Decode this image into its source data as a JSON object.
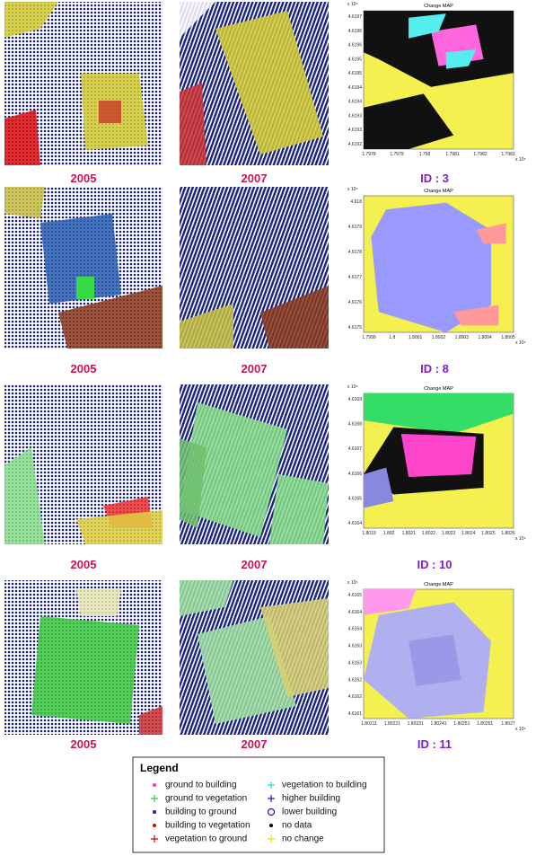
{
  "rows": [
    {
      "captions": [
        "2005",
        "2007",
        "ID : 3"
      ],
      "map": {
        "title": "Change MAP",
        "yticks": [
          "4.6197",
          "4.6196",
          "4.6196",
          "4.6195",
          "4.6195",
          "4.6194",
          "4.6194",
          "4.6193",
          "4.6193",
          "4.6192"
        ],
        "xticks": [
          "1.7978",
          "1.7979",
          "1.798",
          "1.7981",
          "1.7982",
          "1.7983"
        ],
        "y_exponent": "x 10⁶",
        "x_exponent": "x 10⁵"
      }
    },
    {
      "captions": [
        "2005",
        "2007",
        "ID : 8"
      ],
      "map": {
        "title": "Change MAP",
        "yticks": [
          "4.618",
          "4.6179",
          "4.6178",
          "4.6177",
          "4.6176",
          "4.6175"
        ],
        "xticks": [
          "1.7999",
          "1.8",
          "1.8001",
          "1.8002",
          "1.8003",
          "1.8004",
          "1.8005"
        ],
        "y_exponent": "x 10⁶",
        "x_exponent": "x 10⁵"
      }
    },
    {
      "captions": [
        "2005",
        "2007",
        "ID : 10"
      ],
      "map": {
        "title": "Change MAP",
        "yticks": [
          "4.6169",
          "4.6168",
          "4.6167",
          "4.6166",
          "4.6165",
          "4.6164"
        ],
        "xticks": [
          "1.8019",
          "1.802",
          "1.8021",
          "1.8022",
          "1.8023",
          "1.8024",
          "1.8025",
          "1.8026"
        ],
        "y_exponent": "x 10⁶",
        "x_exponent": "x 10⁵"
      }
    },
    {
      "captions": [
        "2005",
        "2007",
        "ID : 11"
      ],
      "map": {
        "title": "Change MAP",
        "yticks": [
          "4.6165",
          "4.6164",
          "4.6164",
          "4.6163",
          "4.6163",
          "4.6162",
          "4.6162",
          "4.6161"
        ],
        "xticks": [
          "1.80211",
          "1.80221",
          "1.80231",
          "1.80241",
          "1.80251",
          "1.80261",
          "1.8027"
        ],
        "y_exponent": "x 10⁶",
        "x_exponent": "x 10⁵"
      }
    }
  ],
  "legend": {
    "title": "Legend",
    "items": [
      {
        "label": "ground to building",
        "marker": "dot",
        "color": "#ff33cc"
      },
      {
        "label": "ground to vegetation",
        "marker": "plus",
        "color": "#33cc33"
      },
      {
        "label": "building to ground",
        "marker": "dot",
        "color": "#1a1acc"
      },
      {
        "label": "building to vegetation",
        "marker": "dot",
        "color": "#dd0000"
      },
      {
        "label": "vegetation to ground",
        "marker": "plus",
        "color": "#dd0000"
      },
      {
        "label": "vegetation to building",
        "marker": "plus",
        "color": "#22dddd"
      },
      {
        "label": "higher building",
        "marker": "plus",
        "color": "#1a1acc"
      },
      {
        "label": "lower building",
        "marker": "circle",
        "color": "#1a1acc"
      },
      {
        "label": "no data",
        "marker": "dot",
        "color": "#000000"
      },
      {
        "label": "no change",
        "marker": "plus",
        "color": "#eedd00"
      }
    ]
  }
}
